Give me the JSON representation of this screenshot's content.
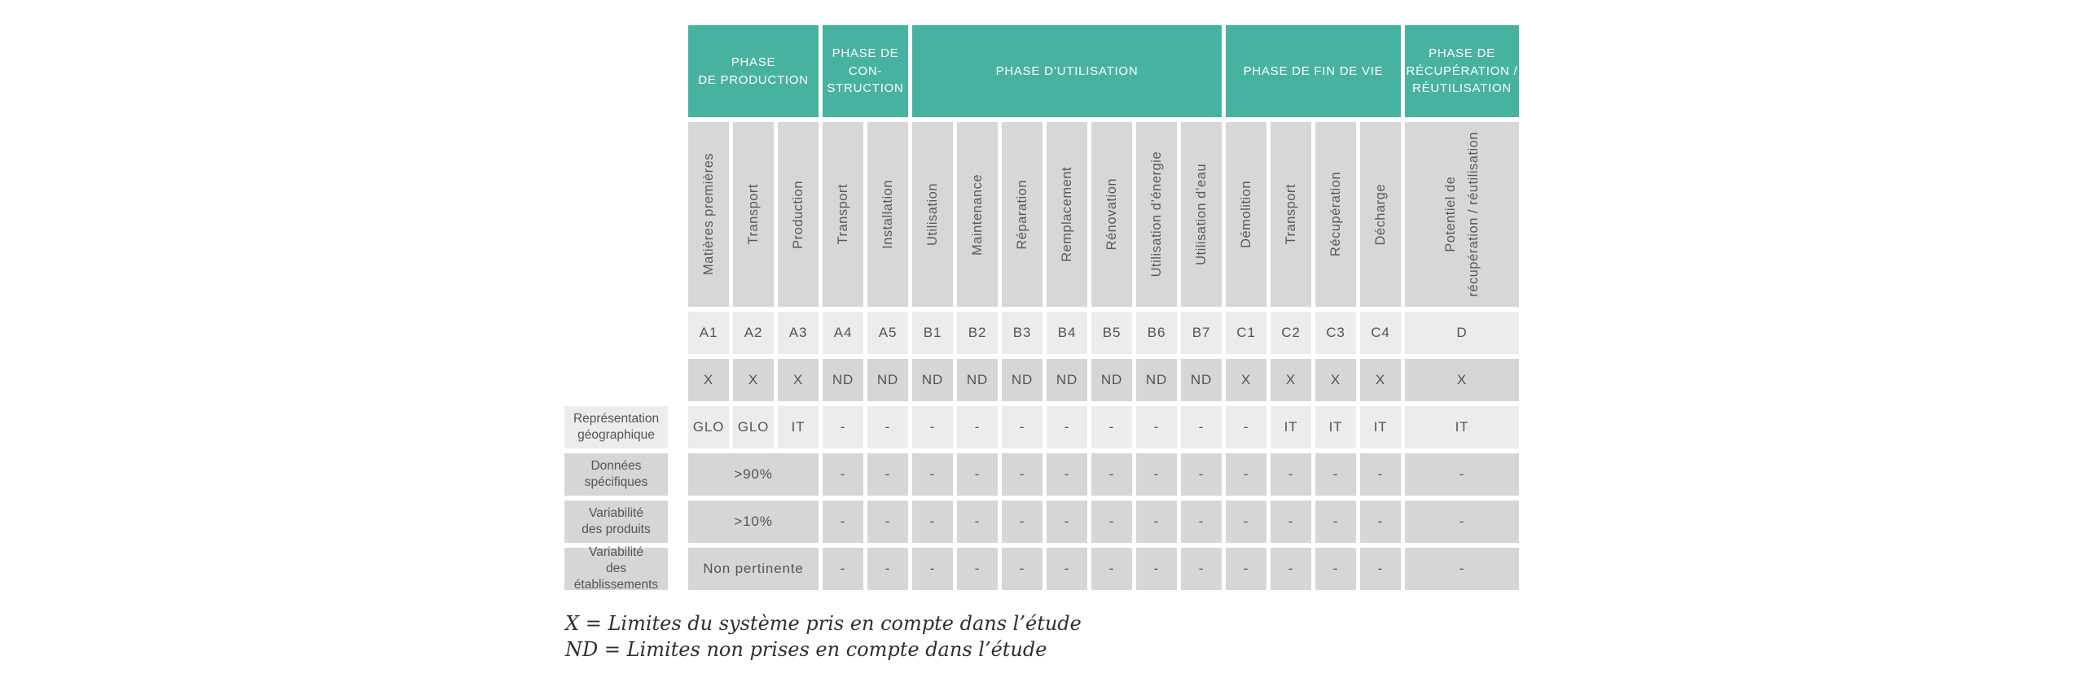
{
  "colors": {
    "teal": "#48b2a0",
    "cell_light": "#ececec",
    "cell_dark": "#d6d6d6",
    "band_gray": "#d7d7d7",
    "text": "#545456",
    "header_text": "#ffffff"
  },
  "table": {
    "phase_headers": [
      {
        "label": "PHASE\nDE PRODUCTION",
        "span": 3
      },
      {
        "label": "PHASE DE\nCON-\nSTRUCTION",
        "span": 2
      },
      {
        "label": "PHASE D’UTILISATION",
        "span": 7
      },
      {
        "label": "PHASE DE FIN DE VIE",
        "span": 4
      },
      {
        "label": "PHASE DE\nRÉCUPÉRATION /\nRÉUTILISATION",
        "span": 1
      }
    ],
    "columns": [
      {
        "code": "A1",
        "label": "Matières premières"
      },
      {
        "code": "A2",
        "label": "Transport"
      },
      {
        "code": "A3",
        "label": "Production"
      },
      {
        "code": "A4",
        "label": "Transport"
      },
      {
        "code": "A5",
        "label": "Installation"
      },
      {
        "code": "B1",
        "label": "Utilisation"
      },
      {
        "code": "B2",
        "label": "Maintenance"
      },
      {
        "code": "B3",
        "label": "Réparation"
      },
      {
        "code": "B4",
        "label": "Remplacement"
      },
      {
        "code": "B5",
        "label": "Rénovation"
      },
      {
        "code": "B6",
        "label": "Utilisation d’énergie"
      },
      {
        "code": "B7",
        "label": "Utilisation d’eau"
      },
      {
        "code": "C1",
        "label": "Démolition"
      },
      {
        "code": "C2",
        "label": "Transport"
      },
      {
        "code": "C3",
        "label": "Récupération"
      },
      {
        "code": "C4",
        "label": "Décharge"
      },
      {
        "code": "D",
        "label": "Potentiel de\nrécupération / réutilisation"
      }
    ],
    "system_boundary_row": [
      "X",
      "X",
      "X",
      "ND",
      "ND",
      "ND",
      "ND",
      "ND",
      "ND",
      "ND",
      "ND",
      "ND",
      "X",
      "X",
      "X",
      "X",
      "X"
    ],
    "data_rows": [
      {
        "label": "Représentation\ngéographique",
        "shade": "light",
        "values": [
          "GLO",
          "GLO",
          "IT",
          "-",
          "-",
          "-",
          "-",
          "-",
          "-",
          "-",
          "-",
          "-",
          "-",
          "IT",
          "IT",
          "IT",
          "IT"
        ]
      },
      {
        "label": "Données\nspécifiques",
        "shade": "dark",
        "merged_value": ">90%",
        "values": [
          "-",
          "-",
          "-",
          "-",
          "-",
          "-",
          "-",
          "-",
          "-",
          "-",
          "-",
          "-",
          "-",
          "-"
        ]
      },
      {
        "label": "Variabilité\ndes produits",
        "shade": "dark",
        "merged_value": ">10%",
        "values": [
          "-",
          "-",
          "-",
          "-",
          "-",
          "-",
          "-",
          "-",
          "-",
          "-",
          "-",
          "-",
          "-",
          "-"
        ]
      },
      {
        "label": "Variabilité\ndes établissements",
        "shade": "dark",
        "merged_value": "Non pertinente",
        "values": [
          "-",
          "-",
          "-",
          "-",
          "-",
          "-",
          "-",
          "-",
          "-",
          "-",
          "-",
          "-",
          "-",
          "-"
        ]
      }
    ],
    "footnotes": [
      "X = Limites du système pris en compte dans l’étude",
      "ND = Limites non prises en compte dans l’étude"
    ]
  }
}
